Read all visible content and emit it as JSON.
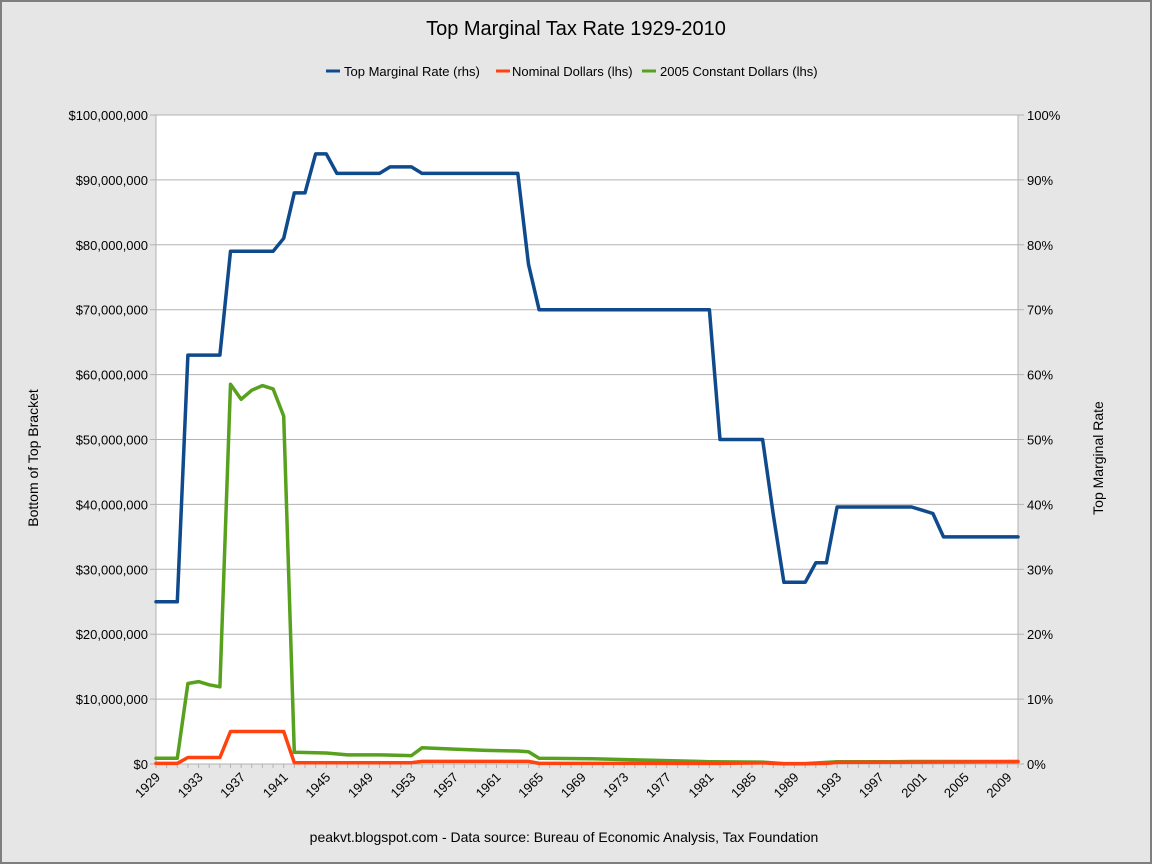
{
  "chart_data": {
    "type": "line",
    "title": "Top Marginal Tax Rate 1929-2010",
    "source_note": "peakvt.blogspot.com - Data source: Bureau of Economic Analysis, Tax Foundation",
    "ylabel_left": "Bottom of Top Bracket",
    "ylabel_right": "Top Marginal Rate",
    "xlim": [
      1929,
      2010
    ],
    "ylim_left": [
      0,
      100000000
    ],
    "ylim_right": [
      0,
      100
    ],
    "grid": true,
    "legend_position": "top-center",
    "x_tick_labels": [
      "1929",
      "1933",
      "1937",
      "1941",
      "1945",
      "1949",
      "1953",
      "1957",
      "1961",
      "1965",
      "1969",
      "1973",
      "1977",
      "1981",
      "1985",
      "1989",
      "1993",
      "1997",
      "2001",
      "2005",
      "2009"
    ],
    "y_left_tick_labels": [
      "$0",
      "$10,000,000",
      "$20,000,000",
      "$30,000,000",
      "$40,000,000",
      "$50,000,000",
      "$60,000,000",
      "$70,000,000",
      "$80,000,000",
      "$90,000,000",
      "$100,000,000"
    ],
    "y_right_tick_labels": [
      "0%",
      "10%",
      "20%",
      "30%",
      "40%",
      "50%",
      "60%",
      "70%",
      "80%",
      "90%",
      "100%"
    ],
    "series": [
      {
        "name": "Top Marginal Rate (rhs)",
        "axis": "right",
        "color": "#0e4a8c",
        "points": [
          [
            1929,
            25
          ],
          [
            1931,
            25
          ],
          [
            1932,
            63
          ],
          [
            1935,
            63
          ],
          [
            1936,
            79
          ],
          [
            1940,
            79
          ],
          [
            1941,
            81
          ],
          [
            1942,
            88
          ],
          [
            1943,
            88
          ],
          [
            1944,
            94
          ],
          [
            1945,
            94
          ],
          [
            1946,
            91
          ],
          [
            1950,
            91
          ],
          [
            1951,
            92
          ],
          [
            1953,
            92
          ],
          [
            1954,
            91
          ],
          [
            1963,
            91
          ],
          [
            1964,
            77
          ],
          [
            1965,
            70
          ],
          [
            1981,
            70
          ],
          [
            1982,
            50
          ],
          [
            1986,
            50
          ],
          [
            1987,
            38.5
          ],
          [
            1988,
            28
          ],
          [
            1990,
            28
          ],
          [
            1991,
            31
          ],
          [
            1992,
            31
          ],
          [
            1993,
            39.6
          ],
          [
            2000,
            39.6
          ],
          [
            2001,
            39.1
          ],
          [
            2002,
            38.6
          ],
          [
            2003,
            35
          ],
          [
            2010,
            35
          ]
        ]
      },
      {
        "name": "Nominal Dollars (lhs)",
        "axis": "left",
        "color": "#ff420e",
        "points": [
          [
            1929,
            100000
          ],
          [
            1931,
            100000
          ],
          [
            1932,
            1000000
          ],
          [
            1935,
            1000000
          ],
          [
            1936,
            5000000
          ],
          [
            1941,
            5000000
          ],
          [
            1942,
            200000
          ],
          [
            1953,
            200000
          ],
          [
            1954,
            400000
          ],
          [
            1964,
            400000
          ],
          [
            1965,
            100000
          ],
          [
            1981,
            100000
          ],
          [
            1982,
            85600
          ],
          [
            1986,
            175250
          ],
          [
            1987,
            90000
          ],
          [
            1988,
            29750
          ],
          [
            1990,
            32450
          ],
          [
            1991,
            82150
          ],
          [
            1992,
            86500
          ],
          [
            1993,
            250000
          ],
          [
            2000,
            288350
          ],
          [
            2001,
            297350
          ],
          [
            2002,
            307050
          ],
          [
            2003,
            311950
          ],
          [
            2010,
            373650
          ]
        ]
      },
      {
        "name": "2005 Constant Dollars (lhs)",
        "axis": "left",
        "color": "#57a11e",
        "points": [
          [
            1929,
            900000
          ],
          [
            1931,
            900000
          ],
          [
            1932,
            12400000
          ],
          [
            1933,
            12700000
          ],
          [
            1934,
            12200000
          ],
          [
            1935,
            11900000
          ],
          [
            1936,
            58500000
          ],
          [
            1937,
            56200000
          ],
          [
            1938,
            57600000
          ],
          [
            1939,
            58300000
          ],
          [
            1940,
            57800000
          ],
          [
            1941,
            53600000
          ],
          [
            1942,
            1800000
          ],
          [
            1945,
            1700000
          ],
          [
            1947,
            1400000
          ],
          [
            1950,
            1400000
          ],
          [
            1953,
            1300000
          ],
          [
            1954,
            2500000
          ],
          [
            1957,
            2300000
          ],
          [
            1960,
            2100000
          ],
          [
            1963,
            2000000
          ],
          [
            1964,
            1900000
          ],
          [
            1965,
            900000
          ],
          [
            1970,
            800000
          ],
          [
            1975,
            600000
          ],
          [
            1980,
            400000
          ],
          [
            1981,
            350000
          ],
          [
            1986,
            300000
          ],
          [
            1988,
            60000
          ],
          [
            1990,
            60000
          ],
          [
            1993,
            350000
          ],
          [
            1998,
            350000
          ],
          [
            2000,
            380000
          ],
          [
            2003,
            380000
          ],
          [
            2010,
            380000
          ]
        ]
      }
    ]
  }
}
